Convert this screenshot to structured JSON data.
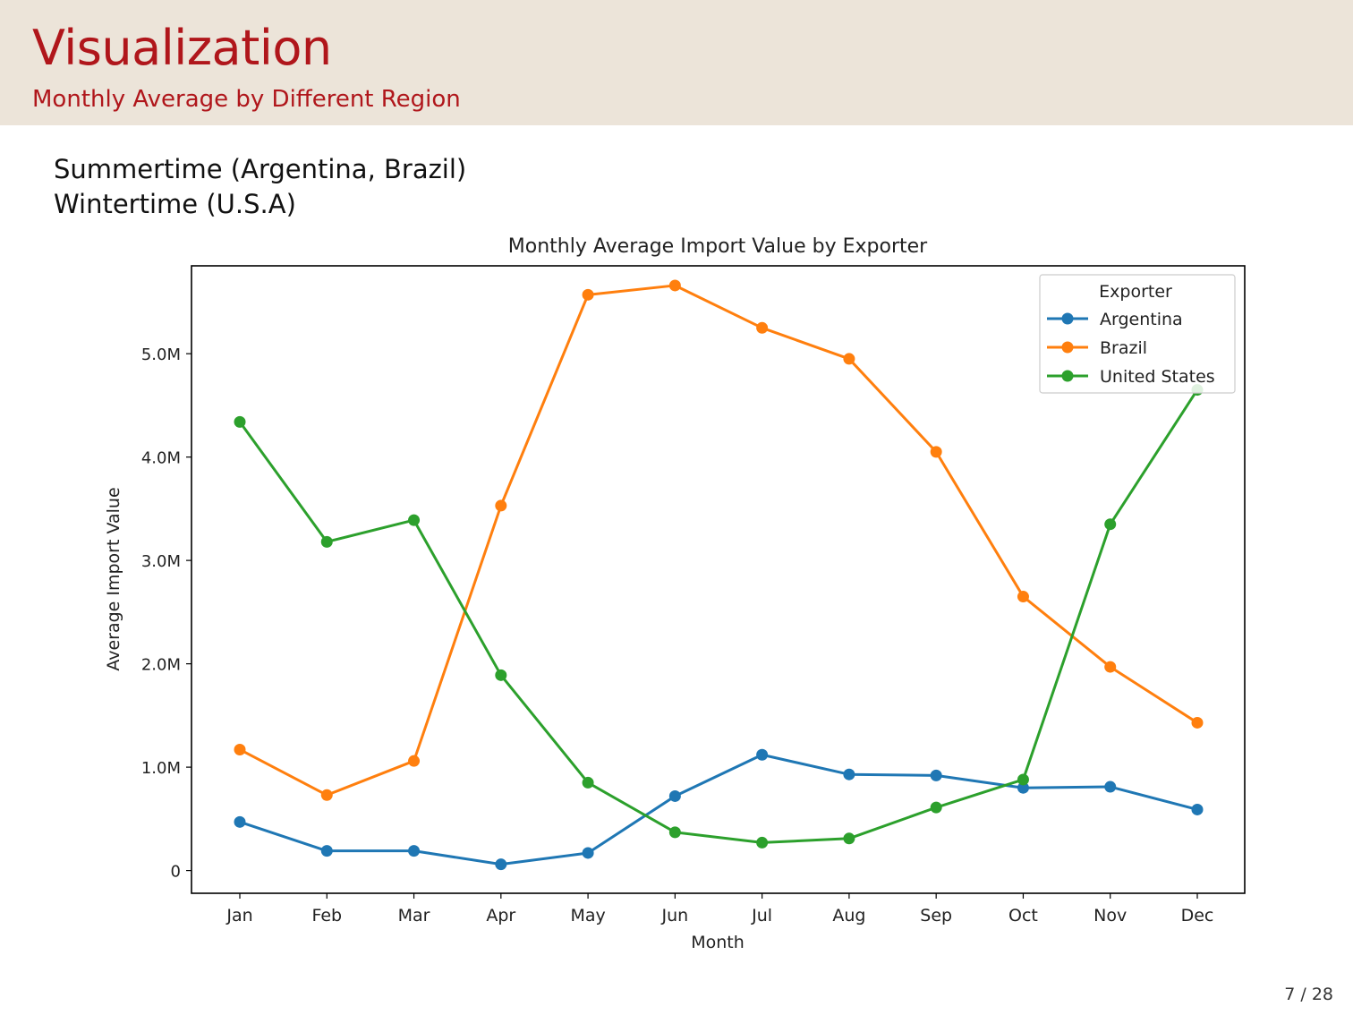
{
  "header": {
    "title": "Visualization",
    "subtitle": "Monthly Average by Different Region"
  },
  "body": {
    "line1": "Summertime (Argentina, Brazil)",
    "line2": "Wintertime (U.S.A)"
  },
  "footer": {
    "page": "7 / 28"
  },
  "colors": {
    "header_bg": "#ece4d9",
    "title": "#b0161b"
  },
  "chart_data": {
    "type": "line",
    "title": "Monthly Average Import Value by Exporter",
    "xlabel": "Month",
    "ylabel": "Average Import Value",
    "categories": [
      "Jan",
      "Feb",
      "Mar",
      "Apr",
      "May",
      "Jun",
      "Jul",
      "Aug",
      "Sep",
      "Oct",
      "Nov",
      "Dec"
    ],
    "yticks": [
      0,
      1000000,
      2000000,
      3000000,
      4000000,
      5000000
    ],
    "ytick_labels": [
      "0",
      "1.0M",
      "2.0M",
      "3.0M",
      "4.0M",
      "5.0M"
    ],
    "ylim": [
      -220000,
      5850000
    ],
    "grid": false,
    "legend": {
      "title": "Exporter",
      "position": "top-right"
    },
    "series": [
      {
        "name": "Argentina",
        "color": "#1f77b4",
        "values": [
          470000,
          190000,
          190000,
          60000,
          170000,
          720000,
          1120000,
          930000,
          920000,
          800000,
          810000,
          590000
        ]
      },
      {
        "name": "Brazil",
        "color": "#ff7f0e",
        "values": [
          1170000,
          730000,
          1060000,
          3530000,
          5570000,
          5660000,
          5250000,
          4950000,
          4050000,
          2650000,
          1970000,
          1430000
        ]
      },
      {
        "name": "United States",
        "color": "#2ca02c",
        "values": [
          4340000,
          3180000,
          3390000,
          1890000,
          850000,
          370000,
          270000,
          310000,
          610000,
          880000,
          3350000,
          4650000
        ]
      }
    ]
  }
}
